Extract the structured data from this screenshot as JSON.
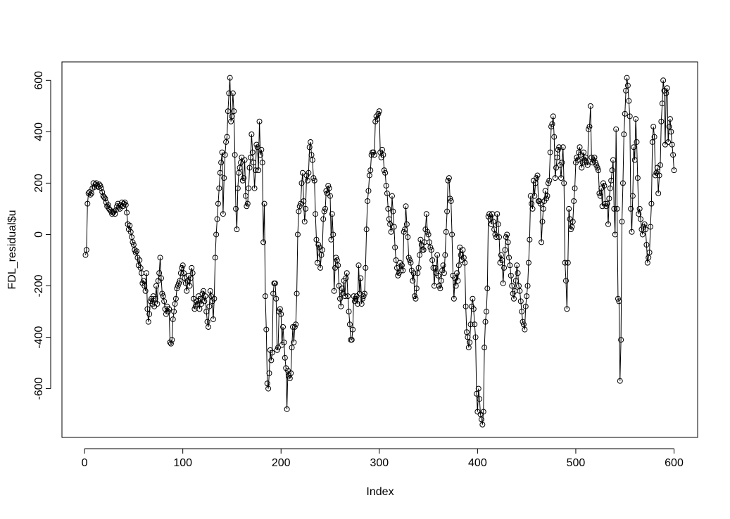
{
  "chart_data": {
    "type": "line",
    "xlabel": "Index",
    "ylabel": "FDL_residual$u",
    "color": "#000000",
    "markers": true,
    "xlim": [
      -23,
      624
    ],
    "ylim": [
      -790,
      672
    ],
    "xticks": [
      0,
      100,
      200,
      300,
      400,
      500,
      600
    ],
    "yticks": [
      -600,
      -400,
      -200,
      0,
      200,
      400,
      600
    ],
    "x": [
      1,
      2,
      3,
      4,
      5,
      6,
      7,
      8,
      9,
      10,
      11,
      12,
      13,
      14,
      15,
      16,
      17,
      18,
      19,
      20,
      21,
      22,
      23,
      24,
      25,
      26,
      27,
      28,
      29,
      30,
      31,
      32,
      33,
      34,
      35,
      36,
      37,
      38,
      39,
      40,
      41,
      42,
      43,
      44,
      45,
      46,
      47,
      48,
      49,
      50,
      51,
      52,
      53,
      54,
      55,
      56,
      57,
      58,
      59,
      60,
      61,
      62,
      63,
      64,
      65,
      66,
      67,
      68,
      69,
      70,
      71,
      72,
      73,
      74,
      75,
      76,
      77,
      78,
      79,
      80,
      81,
      82,
      83,
      84,
      85,
      86,
      87,
      88,
      89,
      90,
      91,
      92,
      93,
      94,
      95,
      96,
      97,
      98,
      99,
      100,
      101,
      102,
      103,
      104,
      105,
      106,
      107,
      108,
      109,
      110,
      111,
      112,
      113,
      114,
      115,
      116,
      117,
      118,
      119,
      120,
      121,
      122,
      123,
      124,
      125,
      126,
      127,
      128,
      129,
      130,
      131,
      132,
      133,
      134,
      135,
      136,
      137,
      138,
      139,
      140,
      141,
      142,
      143,
      144,
      145,
      146,
      147,
      148,
      149,
      150,
      151,
      152,
      153,
      154,
      155,
      156,
      157,
      158,
      159,
      160,
      161,
      162,
      163,
      164,
      165,
      166,
      167,
      168,
      169,
      170,
      171,
      172,
      173,
      174,
      175,
      176,
      177,
      178,
      179,
      180,
      181,
      182,
      183,
      184,
      185,
      186,
      187,
      188,
      189,
      190,
      191,
      192,
      193,
      194,
      195,
      196,
      197,
      198,
      199,
      200,
      201,
      202,
      203,
      204,
      205,
      206,
      207,
      208,
      209,
      210,
      211,
      212,
      213,
      214,
      215,
      216,
      217,
      218,
      219,
      220,
      221,
      222,
      223,
      224,
      225,
      226,
      227,
      228,
      229,
      230,
      231,
      232,
      233,
      234,
      235,
      236,
      237,
      238,
      239,
      240,
      241,
      242,
      243,
      244,
      245,
      246,
      247,
      248,
      249,
      250,
      251,
      252,
      253,
      254,
      255,
      256,
      257,
      258,
      259,
      260,
      261,
      262,
      263,
      264,
      265,
      266,
      267,
      268,
      269,
      270,
      271,
      272,
      273,
      274,
      275,
      276,
      277,
      278,
      279,
      280,
      281,
      282,
      283,
      284,
      285,
      286,
      287,
      288,
      289,
      290,
      291,
      292,
      293,
      294,
      295,
      296,
      297,
      298,
      299,
      300,
      301,
      302,
      303,
      304,
      305,
      306,
      307,
      308,
      309,
      310,
      311,
      312,
      313,
      314,
      315,
      316,
      317,
      318,
      319,
      320,
      321,
      322,
      323,
      324,
      325,
      326,
      327,
      328,
      329,
      330,
      331,
      332,
      333,
      334,
      335,
      336,
      337,
      338,
      339,
      340,
      341,
      342,
      343,
      344,
      345,
      346,
      347,
      348,
      349,
      350,
      351,
      352,
      353,
      354,
      355,
      356,
      357,
      358,
      359,
      360,
      361,
      362,
      363,
      364,
      365,
      366,
      367,
      368,
      369,
      370,
      371,
      372,
      373,
      374,
      375,
      376,
      377,
      378,
      379,
      380,
      381,
      382,
      383,
      384,
      385,
      386,
      387,
      388,
      389,
      390,
      391,
      392,
      393,
      394,
      395,
      396,
      397,
      398,
      399,
      400,
      401,
      402,
      403,
      404,
      405,
      406,
      407,
      408,
      409,
      410,
      411,
      412,
      413,
      414,
      415,
      416,
      417,
      418,
      419,
      420,
      421,
      422,
      423,
      424,
      425,
      426,
      427,
      428,
      429,
      430,
      431,
      432,
      433,
      434,
      435,
      436,
      437,
      438,
      439,
      440,
      441,
      442,
      443,
      444,
      445,
      446,
      447,
      448,
      449,
      450,
      451,
      452,
      453,
      454,
      455,
      456,
      457,
      458,
      459,
      460,
      461,
      462,
      463,
      464,
      465,
      466,
      467,
      468,
      469,
      470,
      471,
      472,
      473,
      474,
      475,
      476,
      477,
      478,
      479,
      480,
      481,
      482,
      483,
      484,
      485,
      486,
      487,
      488,
      489,
      490,
      491,
      492,
      493,
      494,
      495,
      496,
      497,
      498,
      499,
      500,
      501,
      502,
      503,
      504,
      505,
      506,
      507,
      508,
      509,
      510,
      511,
      512,
      513,
      514,
      515,
      516,
      517,
      518,
      519,
      520,
      521,
      522,
      523,
      524,
      525,
      526,
      527,
      528,
      529,
      530,
      531,
      532,
      533,
      534,
      535,
      536,
      537,
      538,
      539,
      540,
      541,
      542,
      543,
      544,
      545,
      546,
      547,
      548,
      549,
      550,
      551,
      552,
      553,
      554,
      555,
      556,
      557,
      558,
      559,
      560,
      561,
      562,
      563,
      564,
      565,
      566,
      567,
      568,
      569,
      570,
      571,
      572,
      573,
      574,
      575,
      576,
      577,
      578,
      579,
      580,
      581,
      582,
      583,
      584,
      585,
      586,
      587,
      588,
      589,
      590,
      591,
      592,
      593,
      594,
      595,
      596,
      597,
      598,
      599,
      600
    ],
    "values": [
      -80,
      -60,
      120,
      160,
      165,
      155,
      160,
      180,
      200,
      185,
      195,
      200,
      190,
      185,
      195,
      190,
      180,
      165,
      150,
      145,
      140,
      125,
      110,
      115,
      100,
      95,
      90,
      80,
      85,
      90,
      80,
      95,
      110,
      120,
      105,
      100,
      115,
      125,
      110,
      120,
      125,
      115,
      85,
      40,
      20,
      35,
      10,
      -10,
      -30,
      -40,
      -60,
      -70,
      -65,
      -90,
      -120,
      -100,
      -130,
      -150,
      -190,
      -180,
      -200,
      -220,
      -150,
      -290,
      -340,
      -310,
      -260,
      -250,
      -270,
      -240,
      -280,
      -250,
      -200,
      -270,
      -180,
      -150,
      -90,
      -170,
      -230,
      -240,
      -260,
      -290,
      -310,
      -280,
      -300,
      -290,
      -420,
      -425,
      -410,
      -330,
      -300,
      -270,
      -250,
      -210,
      -200,
      -190,
      -180,
      -150,
      -130,
      -120,
      -150,
      -170,
      -190,
      -220,
      -180,
      -160,
      -200,
      -170,
      -130,
      -150,
      -250,
      -290,
      -280,
      -260,
      -270,
      -240,
      -290,
      -250,
      -270,
      -230,
      -220,
      -260,
      -240,
      -300,
      -340,
      -360,
      -280,
      -220,
      -240,
      -260,
      -330,
      -250,
      -90,
      0,
      60,
      120,
      180,
      240,
      280,
      320,
      80,
      220,
      310,
      360,
      380,
      480,
      550,
      610,
      440,
      460,
      550,
      480,
      310,
      100,
      20,
      180,
      240,
      260,
      280,
      300,
      210,
      220,
      290,
      150,
      110,
      120,
      180,
      260,
      300,
      390,
      320,
      280,
      180,
      250,
      350,
      340,
      250,
      440,
      310,
      330,
      280,
      -30,
      120,
      -240,
      -370,
      -580,
      -600,
      -540,
      -450,
      -490,
      -460,
      -230,
      -190,
      -190,
      -250,
      -450,
      -440,
      -300,
      -290,
      -310,
      -430,
      -360,
      -420,
      -480,
      -520,
      -680,
      -530,
      -550,
      -560,
      -540,
      -440,
      -360,
      -420,
      -360,
      -350,
      -230,
      0,
      90,
      110,
      120,
      200,
      240,
      130,
      50,
      100,
      230,
      210,
      240,
      340,
      360,
      310,
      290,
      220,
      210,
      80,
      -20,
      -110,
      -40,
      -50,
      -130,
      -80,
      -60,
      60,
      90,
      100,
      170,
      160,
      190,
      180,
      150,
      -20,
      80,
      0,
      -220,
      -130,
      -90,
      -100,
      -120,
      -200,
      -250,
      -280,
      -210,
      -230,
      -180,
      -240,
      -170,
      -150,
      -240,
      -300,
      -350,
      -410,
      -410,
      -370,
      -240,
      -260,
      -250,
      -240,
      -270,
      -120,
      -230,
      -170,
      -270,
      -250,
      -240,
      -230,
      -130,
      20,
      130,
      170,
      230,
      250,
      310,
      320,
      320,
      310,
      440,
      460,
      450,
      470,
      480,
      320,
      300,
      330,
      310,
      250,
      240,
      190,
      160,
      100,
      60,
      40,
      10,
      150,
      90,
      30,
      -50,
      -100,
      -130,
      -160,
      -150,
      -110,
      -140,
      -120,
      -140,
      10,
      20,
      110,
      40,
      -10,
      -90,
      -100,
      -110,
      -140,
      -180,
      -150,
      -240,
      -250,
      -210,
      -150,
      -130,
      -80,
      -20,
      -40,
      -60,
      -60,
      -30,
      20,
      80,
      10,
      0,
      -30,
      -50,
      -60,
      -100,
      -130,
      -200,
      -130,
      -150,
      -80,
      -160,
      -200,
      -210,
      -180,
      -140,
      -120,
      -150,
      -80,
      10,
      90,
      210,
      220,
      140,
      130,
      0,
      -160,
      -250,
      -170,
      -200,
      -150,
      -180,
      -120,
      -50,
      -80,
      -100,
      -60,
      -90,
      -110,
      -280,
      -380,
      -400,
      -440,
      -420,
      -350,
      -280,
      -250,
      -290,
      -350,
      -400,
      -620,
      -690,
      -600,
      -640,
      -700,
      -720,
      -740,
      -690,
      -440,
      -340,
      -300,
      -210,
      70,
      80,
      60,
      40,
      80,
      50,
      20,
      0,
      -10,
      80,
      40,
      -10,
      -110,
      -80,
      -100,
      -190,
      -130,
      -60,
      -10,
      0,
      -30,
      -90,
      -120,
      -160,
      -200,
      -230,
      -250,
      -220,
      -180,
      -120,
      -150,
      -200,
      -220,
      -260,
      -300,
      -340,
      -350,
      -370,
      -280,
      -240,
      -200,
      -110,
      -20,
      150,
      120,
      100,
      210,
      150,
      200,
      220,
      230,
      130,
      130,
      120,
      -30,
      50,
      100,
      130,
      170,
      140,
      150,
      200,
      210,
      320,
      420,
      430,
      460,
      380,
      220,
      260,
      300,
      330,
      340,
      270,
      220,
      280,
      340,
      200,
      -110,
      -180,
      -290,
      -110,
      100,
      60,
      20,
      30,
      50,
      130,
      180,
      280,
      300,
      290,
      320,
      340,
      310,
      260,
      280,
      320,
      290,
      300,
      280,
      270,
      410,
      420,
      500,
      300,
      280,
      290,
      300,
      280,
      270,
      260,
      250,
      160,
      150,
      180,
      110,
      200,
      190,
      120,
      110,
      120,
      40,
      140,
      180,
      210,
      250,
      290,
      100,
      0,
      410,
      100,
      -250,
      -260,
      -570,
      -410,
      50,
      200,
      390,
      470,
      560,
      610,
      580,
      520,
      460,
      100,
      10,
      150,
      340,
      290,
      450,
      360,
      220,
      80,
      100,
      60,
      20,
      0,
      30,
      40,
      20,
      -40,
      -110,
      -90,
      -70,
      30,
      120,
      360,
      420,
      380,
      230,
      240,
      260,
      160,
      230,
      270,
      440,
      510,
      600,
      560,
      350,
      550,
      570,
      360,
      420,
      450,
      400,
      350,
      310,
      250
    ]
  }
}
